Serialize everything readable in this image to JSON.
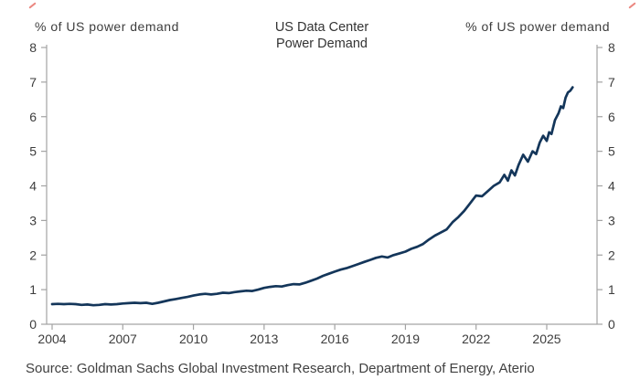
{
  "header": {
    "left_axis_label": "% of US power demand",
    "right_axis_label": "% of US power demand",
    "title_line1": "US Data Center",
    "title_line2": "Power Demand"
  },
  "footer": {
    "source": "Source: Goldman Sachs Global Investment Research, Department of Energy, Aterio"
  },
  "colors": {
    "line": "#14365a",
    "axis": "#a3a3a3",
    "tick_text": "#3d3d3d",
    "crop_mark": "#e0483e"
  },
  "chart_data": {
    "type": "line",
    "title": "US Data Center Power Demand",
    "ylabel_left": "% of US power demand",
    "ylabel_right": "% of US power demand",
    "xlabel": "",
    "xlim": [
      2004,
      2027.2
    ],
    "ylim": [
      0,
      8
    ],
    "xticks": [
      2004,
      2007,
      2010,
      2013,
      2016,
      2019,
      2022,
      2025
    ],
    "yticks": [
      0,
      1,
      2,
      3,
      4,
      5,
      6,
      7,
      8
    ],
    "grid": false,
    "legend_position": "none",
    "series": [
      {
        "name": "US data center power demand (% of US power demand)",
        "color": "#14365a",
        "points": [
          [
            2004.0,
            0.58
          ],
          [
            2004.25,
            0.59
          ],
          [
            2004.5,
            0.58
          ],
          [
            2004.75,
            0.59
          ],
          [
            2005.0,
            0.58
          ],
          [
            2005.25,
            0.56
          ],
          [
            2005.5,
            0.57
          ],
          [
            2005.75,
            0.55
          ],
          [
            2006.0,
            0.56
          ],
          [
            2006.25,
            0.58
          ],
          [
            2006.5,
            0.57
          ],
          [
            2006.75,
            0.58
          ],
          [
            2007.0,
            0.6
          ],
          [
            2007.25,
            0.61
          ],
          [
            2007.5,
            0.62
          ],
          [
            2007.75,
            0.61
          ],
          [
            2008.0,
            0.62
          ],
          [
            2008.25,
            0.59
          ],
          [
            2008.5,
            0.62
          ],
          [
            2008.75,
            0.66
          ],
          [
            2009.0,
            0.7
          ],
          [
            2009.25,
            0.73
          ],
          [
            2009.5,
            0.76
          ],
          [
            2009.75,
            0.79
          ],
          [
            2010.0,
            0.83
          ],
          [
            2010.25,
            0.86
          ],
          [
            2010.5,
            0.88
          ],
          [
            2010.75,
            0.86
          ],
          [
            2011.0,
            0.88
          ],
          [
            2011.25,
            0.91
          ],
          [
            2011.5,
            0.9
          ],
          [
            2011.75,
            0.93
          ],
          [
            2012.0,
            0.95
          ],
          [
            2012.25,
            0.97
          ],
          [
            2012.5,
            0.96
          ],
          [
            2012.75,
            1.0
          ],
          [
            2013.0,
            1.05
          ],
          [
            2013.25,
            1.08
          ],
          [
            2013.5,
            1.1
          ],
          [
            2013.75,
            1.09
          ],
          [
            2014.0,
            1.13
          ],
          [
            2014.25,
            1.16
          ],
          [
            2014.5,
            1.15
          ],
          [
            2014.75,
            1.2
          ],
          [
            2015.0,
            1.26
          ],
          [
            2015.25,
            1.32
          ],
          [
            2015.5,
            1.4
          ],
          [
            2015.75,
            1.46
          ],
          [
            2016.0,
            1.52
          ],
          [
            2016.25,
            1.58
          ],
          [
            2016.5,
            1.62
          ],
          [
            2016.75,
            1.68
          ],
          [
            2017.0,
            1.74
          ],
          [
            2017.25,
            1.8
          ],
          [
            2017.5,
            1.86
          ],
          [
            2017.75,
            1.92
          ],
          [
            2018.0,
            1.96
          ],
          [
            2018.25,
            1.93
          ],
          [
            2018.5,
            2.0
          ],
          [
            2018.75,
            2.05
          ],
          [
            2019.0,
            2.1
          ],
          [
            2019.25,
            2.18
          ],
          [
            2019.5,
            2.24
          ],
          [
            2019.75,
            2.32
          ],
          [
            2020.0,
            2.45
          ],
          [
            2020.25,
            2.56
          ],
          [
            2020.5,
            2.65
          ],
          [
            2020.75,
            2.74
          ],
          [
            2021.0,
            2.95
          ],
          [
            2021.25,
            3.1
          ],
          [
            2021.5,
            3.28
          ],
          [
            2021.75,
            3.5
          ],
          [
            2022.0,
            3.72
          ],
          [
            2022.25,
            3.7
          ],
          [
            2022.5,
            3.85
          ],
          [
            2022.75,
            4.0
          ],
          [
            2023.0,
            4.1
          ],
          [
            2023.2,
            4.32
          ],
          [
            2023.35,
            4.15
          ],
          [
            2023.5,
            4.45
          ],
          [
            2023.65,
            4.3
          ],
          [
            2023.8,
            4.6
          ],
          [
            2024.0,
            4.9
          ],
          [
            2024.2,
            4.7
          ],
          [
            2024.4,
            5.0
          ],
          [
            2024.55,
            4.92
          ],
          [
            2024.7,
            5.25
          ],
          [
            2024.85,
            5.45
          ],
          [
            2025.0,
            5.3
          ],
          [
            2025.1,
            5.55
          ],
          [
            2025.2,
            5.5
          ],
          [
            2025.35,
            5.9
          ],
          [
            2025.5,
            6.1
          ],
          [
            2025.6,
            6.3
          ],
          [
            2025.7,
            6.25
          ],
          [
            2025.8,
            6.55
          ],
          [
            2025.9,
            6.7
          ],
          [
            2026.0,
            6.75
          ],
          [
            2026.1,
            6.85
          ]
        ]
      }
    ]
  }
}
